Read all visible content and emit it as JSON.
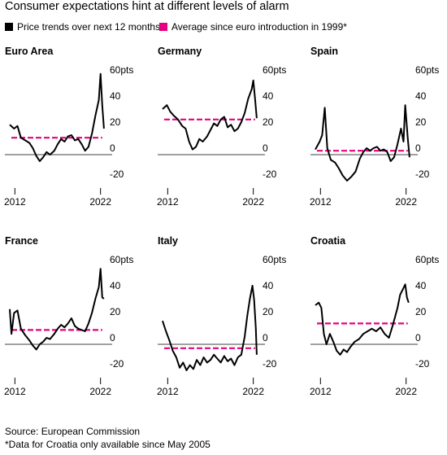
{
  "header": {
    "title": "Consumer expectations hint at different levels of alarm",
    "legend": {
      "price_label": "Price trends over next 12 months",
      "avg_label": "Average since euro introduction in 1999*",
      "price_color": "#000000",
      "avg_color": "#e6007e"
    }
  },
  "footer": {
    "source": "Source: European Commission",
    "note": "*Data for Croatia only available since May 2005"
  },
  "chart_data": [
    {
      "type": "line",
      "title": "Euro Area",
      "ylim": [
        -20,
        60
      ],
      "yticks": [
        -20,
        0,
        20,
        40,
        60
      ],
      "ytick_labels": [
        "-20",
        "0",
        "20",
        "40",
        "60pts"
      ],
      "xlim": [
        2011.4,
        2022.6
      ],
      "xtick_labels": [
        "2012",
        "2022"
      ],
      "xticks": [
        2012,
        2022
      ],
      "average": 13,
      "series": [
        {
          "points": [
            [
              2011.4,
              23
            ],
            [
              2011.9,
              20
            ],
            [
              2012.3,
              22
            ],
            [
              2012.7,
              13
            ],
            [
              2013.2,
              11
            ],
            [
              2013.7,
              9
            ],
            [
              2014.1,
              5
            ],
            [
              2014.5,
              -1
            ],
            [
              2014.9,
              -5
            ],
            [
              2015.3,
              -2
            ],
            [
              2015.7,
              2
            ],
            [
              2016.1,
              0
            ],
            [
              2016.6,
              3
            ],
            [
              2017,
              8
            ],
            [
              2017.4,
              12
            ],
            [
              2017.8,
              10
            ],
            [
              2018.2,
              14
            ],
            [
              2018.6,
              15
            ],
            [
              2019,
              11
            ],
            [
              2019.4,
              12
            ],
            [
              2019.8,
              8
            ],
            [
              2020.2,
              3
            ],
            [
              2020.6,
              6
            ],
            [
              2021,
              16
            ],
            [
              2021.4,
              30
            ],
            [
              2021.8,
              42
            ],
            [
              2022,
              62
            ],
            [
              2022.2,
              38
            ],
            [
              2022.4,
              20
            ]
          ]
        }
      ]
    },
    {
      "type": "line",
      "title": "Germany",
      "ylim": [
        -20,
        60
      ],
      "yticks": [
        -20,
        0,
        20,
        40,
        60
      ],
      "ytick_labels": [
        "-20",
        "0",
        "20",
        "40",
        "60pts"
      ],
      "xlim": [
        2011.4,
        2022.6
      ],
      "xtick_labels": [
        "2012",
        "2022"
      ],
      "xticks": [
        2012,
        2022
      ],
      "average": 27,
      "series": [
        {
          "points": [
            [
              2011.4,
              35
            ],
            [
              2011.9,
              38
            ],
            [
              2012.3,
              33
            ],
            [
              2012.7,
              30
            ],
            [
              2013.2,
              27
            ],
            [
              2013.7,
              22
            ],
            [
              2014.1,
              20
            ],
            [
              2014.5,
              10
            ],
            [
              2014.9,
              4
            ],
            [
              2015.3,
              6
            ],
            [
              2015.7,
              12
            ],
            [
              2016.1,
              10
            ],
            [
              2016.6,
              14
            ],
            [
              2017,
              19
            ],
            [
              2017.4,
              24
            ],
            [
              2017.8,
              22
            ],
            [
              2018.2,
              27
            ],
            [
              2018.6,
              29
            ],
            [
              2019,
              21
            ],
            [
              2019.4,
              23
            ],
            [
              2019.8,
              18
            ],
            [
              2020.2,
              20
            ],
            [
              2020.6,
              25
            ],
            [
              2021,
              32
            ],
            [
              2021.4,
              43
            ],
            [
              2021.8,
              50
            ],
            [
              2022,
              57
            ],
            [
              2022.2,
              43
            ],
            [
              2022.4,
              28
            ]
          ]
        }
      ]
    },
    {
      "type": "line",
      "title": "Spain",
      "ylim": [
        -20,
        60
      ],
      "yticks": [
        -20,
        0,
        20,
        40,
        60
      ],
      "ytick_labels": [
        "-20",
        "0",
        "20",
        "40",
        "60pts"
      ],
      "xlim": [
        2011.4,
        2022.6
      ],
      "xtick_labels": [
        "2012",
        "2022"
      ],
      "xticks": [
        2012,
        2022
      ],
      "average": 3,
      "series": [
        {
          "points": [
            [
              2011.4,
              4
            ],
            [
              2011.9,
              10
            ],
            [
              2012.2,
              15
            ],
            [
              2012.5,
              36
            ],
            [
              2012.8,
              5
            ],
            [
              2013.2,
              -4
            ],
            [
              2013.7,
              -6
            ],
            [
              2014.1,
              -10
            ],
            [
              2014.6,
              -16
            ],
            [
              2015.1,
              -20
            ],
            [
              2015.6,
              -17
            ],
            [
              2016.1,
              -13
            ],
            [
              2016.6,
              -3
            ],
            [
              2017,
              2
            ],
            [
              2017.4,
              5
            ],
            [
              2017.8,
              3
            ],
            [
              2018.2,
              5
            ],
            [
              2018.6,
              6
            ],
            [
              2019,
              3
            ],
            [
              2019.4,
              4
            ],
            [
              2019.8,
              2
            ],
            [
              2020.2,
              -5
            ],
            [
              2020.6,
              -2
            ],
            [
              2021,
              8
            ],
            [
              2021.4,
              20
            ],
            [
              2021.7,
              10
            ],
            [
              2021.9,
              38
            ],
            [
              2022.2,
              12
            ],
            [
              2022.4,
              -2
            ]
          ]
        }
      ]
    },
    {
      "type": "line",
      "title": "France",
      "ylim": [
        -20,
        60
      ],
      "yticks": [
        -20,
        0,
        20,
        40,
        60
      ],
      "ytick_labels": [
        "-20",
        "0",
        "20",
        "40",
        "60pts"
      ],
      "xlim": [
        2011.4,
        2022.6
      ],
      "xtick_labels": [
        "2012",
        "2022"
      ],
      "xticks": [
        2012,
        2022
      ],
      "average": 11,
      "series": [
        {
          "points": [
            [
              2011.4,
              27
            ],
            [
              2011.6,
              8
            ],
            [
              2011.9,
              24
            ],
            [
              2012.3,
              26
            ],
            [
              2012.7,
              12
            ],
            [
              2013.2,
              7
            ],
            [
              2013.7,
              3
            ],
            [
              2014.1,
              -1
            ],
            [
              2014.5,
              -4
            ],
            [
              2014.9,
              0
            ],
            [
              2015.3,
              2
            ],
            [
              2015.7,
              5
            ],
            [
              2016.1,
              4
            ],
            [
              2016.6,
              8
            ],
            [
              2017,
              12
            ],
            [
              2017.4,
              15
            ],
            [
              2017.8,
              13
            ],
            [
              2018.2,
              16
            ],
            [
              2018.6,
              20
            ],
            [
              2019,
              14
            ],
            [
              2019.4,
              12
            ],
            [
              2019.8,
              11
            ],
            [
              2020.2,
              10
            ],
            [
              2020.6,
              16
            ],
            [
              2021,
              24
            ],
            [
              2021.4,
              35
            ],
            [
              2021.8,
              44
            ],
            [
              2022,
              58
            ],
            [
              2022.2,
              36
            ],
            [
              2022.4,
              35
            ]
          ]
        }
      ]
    },
    {
      "type": "line",
      "title": "Italy",
      "ylim": [
        -20,
        60
      ],
      "yticks": [
        -20,
        0,
        20,
        40,
        60
      ],
      "ytick_labels": [
        "-20",
        "0",
        "20",
        "40",
        "60pts"
      ],
      "xlim": [
        2011.4,
        2022.6
      ],
      "xtick_labels": [
        "2012",
        "2022"
      ],
      "xticks": [
        2012,
        2022
      ],
      "average": -3,
      "series": [
        {
          "points": [
            [
              2011.4,
              18
            ],
            [
              2011.8,
              10
            ],
            [
              2012.2,
              3
            ],
            [
              2012.6,
              -5
            ],
            [
              2013,
              -10
            ],
            [
              2013.4,
              -18
            ],
            [
              2013.8,
              -14
            ],
            [
              2014.2,
              -20
            ],
            [
              2014.6,
              -16
            ],
            [
              2015,
              -19
            ],
            [
              2015.4,
              -12
            ],
            [
              2015.8,
              -16
            ],
            [
              2016.2,
              -10
            ],
            [
              2016.6,
              -14
            ],
            [
              2017,
              -12
            ],
            [
              2017.4,
              -8
            ],
            [
              2017.8,
              -11
            ],
            [
              2018.2,
              -14
            ],
            [
              2018.6,
              -9
            ],
            [
              2019,
              -13
            ],
            [
              2019.4,
              -11
            ],
            [
              2019.8,
              -16
            ],
            [
              2020.2,
              -10
            ],
            [
              2020.6,
              -8
            ],
            [
              2021,
              6
            ],
            [
              2021.3,
              22
            ],
            [
              2021.6,
              35
            ],
            [
              2021.9,
              45
            ],
            [
              2022.1,
              34
            ],
            [
              2022.3,
              12
            ],
            [
              2022.4,
              -8
            ]
          ]
        }
      ]
    },
    {
      "type": "line",
      "title": "Croatia",
      "ylim": [
        -20,
        60
      ],
      "yticks": [
        -20,
        0,
        20,
        40,
        60
      ],
      "ytick_labels": [
        "-20",
        "0",
        "20",
        "40",
        "60pts"
      ],
      "xlim": [
        2011.4,
        2022.6
      ],
      "xtick_labels": [
        "2012",
        "2022"
      ],
      "xticks": [
        2012,
        2022
      ],
      "average": 16,
      "series": [
        {
          "points": [
            [
              2011.4,
              30
            ],
            [
              2011.8,
              32
            ],
            [
              2012.1,
              28
            ],
            [
              2012.4,
              8
            ],
            [
              2012.7,
              0
            ],
            [
              2013.1,
              8
            ],
            [
              2013.5,
              2
            ],
            [
              2013.9,
              -5
            ],
            [
              2014.3,
              -8
            ],
            [
              2014.7,
              -4
            ],
            [
              2015.1,
              -6
            ],
            [
              2015.5,
              -2
            ],
            [
              2016,
              2
            ],
            [
              2016.5,
              4
            ],
            [
              2017,
              8
            ],
            [
              2017.5,
              10
            ],
            [
              2018,
              12
            ],
            [
              2018.5,
              10
            ],
            [
              2019,
              13
            ],
            [
              2019.5,
              8
            ],
            [
              2020,
              5
            ],
            [
              2020.5,
              16
            ],
            [
              2021,
              28
            ],
            [
              2021.3,
              38
            ],
            [
              2021.6,
              42
            ],
            [
              2021.9,
              46
            ],
            [
              2022.1,
              36
            ],
            [
              2022.3,
              32
            ]
          ]
        }
      ]
    }
  ]
}
